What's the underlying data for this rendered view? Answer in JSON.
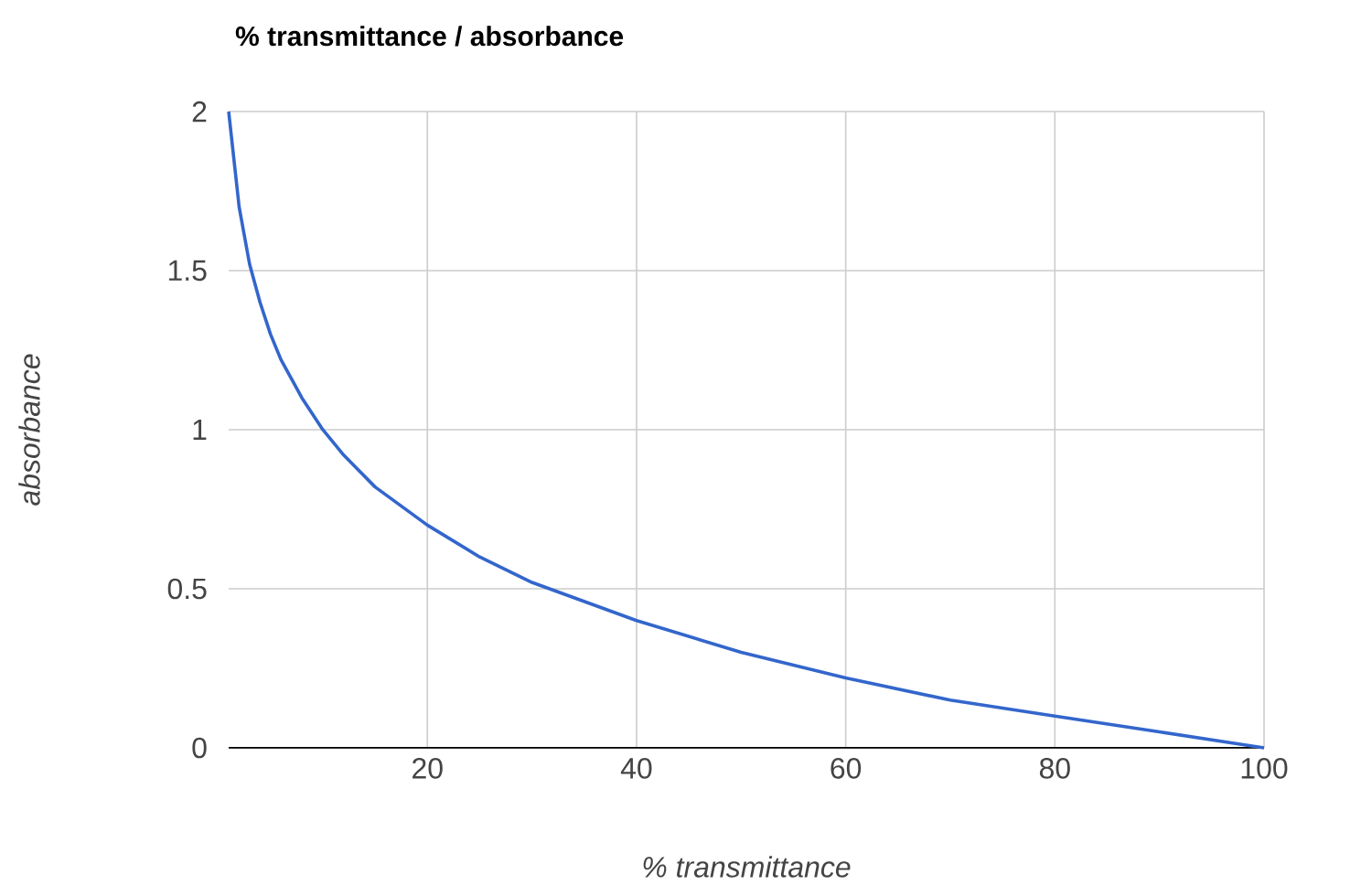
{
  "chart_data": {
    "type": "line",
    "title": "% transmittance / absorbance",
    "xlabel": "% transmittance",
    "ylabel": "absorbance",
    "x": [
      1,
      2,
      3,
      4,
      5,
      6,
      8,
      10,
      12,
      15,
      20,
      25,
      30,
      40,
      50,
      60,
      70,
      80,
      90,
      100
    ],
    "series": [
      {
        "color": "#3366cc",
        "values": [
          2,
          1.7,
          1.52,
          1.4,
          1.3,
          1.22,
          1.1,
          1.0,
          0.92,
          0.82,
          0.7,
          0.6,
          0.52,
          0.4,
          0.3,
          0.22,
          0.15,
          0.1,
          0.05,
          0
        ]
      }
    ],
    "xlim": [
      1,
      100
    ],
    "ylim": [
      0,
      2
    ],
    "xticks": [
      20,
      40,
      60,
      80,
      100
    ],
    "yticks": [
      0,
      0.5,
      1,
      1.5,
      2
    ],
    "grid": true,
    "marker": "none",
    "line_style": "solid"
  }
}
